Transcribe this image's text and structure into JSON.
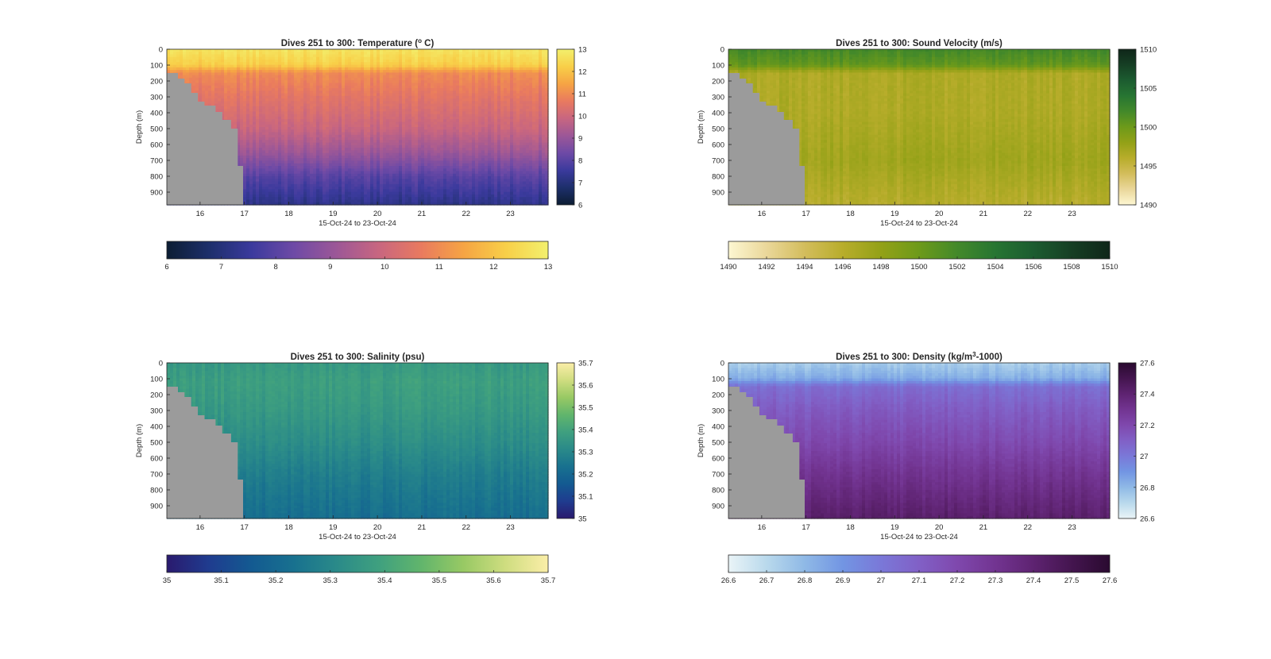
{
  "chart_data": [
    {
      "type": "heatmap",
      "title": "Dives 251 to 300: Temperature (° C)",
      "title_parts": [
        "Dives 251 to 300: Temperature (",
        "o",
        " C)"
      ],
      "xlabel": "15-Oct-24 to 23-Oct-24",
      "ylabel": "Depth (m)",
      "x_ticks": [
        "16",
        "17",
        "18",
        "19",
        "20",
        "21",
        "22",
        "23"
      ],
      "x_tick_values": [
        16,
        17,
        18,
        19,
        20,
        21,
        22,
        23
      ],
      "xlim": [
        15.25,
        23.85
      ],
      "y_ticks": [
        "0",
        "100",
        "200",
        "300",
        "400",
        "500",
        "600",
        "700",
        "800",
        "900"
      ],
      "ylim": [
        0,
        980
      ],
      "y_reversed": true,
      "clim": [
        6,
        13
      ],
      "colorbar_ticks": [
        "6",
        "7",
        "8",
        "9",
        "10",
        "11",
        "12",
        "13"
      ],
      "colorbar_tick_values": [
        6,
        7,
        8,
        9,
        10,
        11,
        12,
        13
      ],
      "horizontal_colorbar_ticks": [
        "6",
        "7",
        "8",
        "9",
        "10",
        "11",
        "12",
        "13"
      ],
      "horizontal_colorbar_tick_values": [
        6,
        7,
        8,
        9,
        10,
        11,
        12,
        13
      ],
      "colormap": [
        "#0c1d33",
        "#1d2f6b",
        "#3b3a9d",
        "#6e4aa6",
        "#9c5797",
        "#c86680",
        "#e97a5f",
        "#f6a444",
        "#f8cf48",
        "#f3f06d"
      ],
      "profile": [
        {
          "depth": 0,
          "value": 12.7
        },
        {
          "depth": 100,
          "value": 12.2
        },
        {
          "depth": 150,
          "value": 11.0
        },
        {
          "depth": 300,
          "value": 10.5
        },
        {
          "depth": 500,
          "value": 9.9
        },
        {
          "depth": 650,
          "value": 9.1
        },
        {
          "depth": 800,
          "value": 8.0
        },
        {
          "depth": 980,
          "value": 7.2
        }
      ],
      "bathymetry": [
        {
          "x": 15.25,
          "depth": 150
        },
        {
          "x": 15.5,
          "depth": 185
        },
        {
          "x": 15.65,
          "depth": 215
        },
        {
          "x": 15.8,
          "depth": 275
        },
        {
          "x": 15.95,
          "depth": 330
        },
        {
          "x": 16.1,
          "depth": 355
        },
        {
          "x": 16.35,
          "depth": 395
        },
        {
          "x": 16.5,
          "depth": 445
        },
        {
          "x": 16.7,
          "depth": 500
        },
        {
          "x": 16.85,
          "depth": 735
        },
        {
          "x": 16.97,
          "depth": 980
        }
      ]
    },
    {
      "type": "heatmap",
      "title": "Dives 251 to 300: Sound Velocity (m/s)",
      "title_parts": [
        "Dives 251 to 300: Sound Velocity (m/s)",
        "",
        ""
      ],
      "xlabel": "15-Oct-24 to 23-Oct-24",
      "ylabel": "Depth (m)",
      "x_ticks": [
        "16",
        "17",
        "18",
        "19",
        "20",
        "21",
        "22",
        "23"
      ],
      "x_tick_values": [
        16,
        17,
        18,
        19,
        20,
        21,
        22,
        23
      ],
      "xlim": [
        15.25,
        23.85
      ],
      "y_ticks": [
        "0",
        "100",
        "200",
        "300",
        "400",
        "500",
        "600",
        "700",
        "800",
        "900"
      ],
      "ylim": [
        0,
        980
      ],
      "y_reversed": true,
      "clim": [
        1490,
        1510
      ],
      "colorbar_ticks": [
        "1490",
        "1495",
        "1500",
        "1505",
        "1510"
      ],
      "colorbar_tick_values": [
        1490,
        1495,
        1500,
        1505,
        1510
      ],
      "horizontal_colorbar_ticks": [
        "1490",
        "1492",
        "1494",
        "1496",
        "1498",
        "1500",
        "1502",
        "1504",
        "1506",
        "1508",
        "1510"
      ],
      "horizontal_colorbar_tick_values": [
        1490,
        1492,
        1494,
        1496,
        1498,
        1500,
        1502,
        1504,
        1506,
        1508,
        1510
      ],
      "colormap": [
        "#fdf7d2",
        "#ead79a",
        "#d3bd5c",
        "#b8ad2b",
        "#93a117",
        "#6d9a1a",
        "#43892a",
        "#277532",
        "#1c5c30",
        "#163f24",
        "#0f2619"
      ],
      "profile": [
        {
          "depth": 0,
          "value": 1502.0
        },
        {
          "depth": 100,
          "value": 1500.5
        },
        {
          "depth": 150,
          "value": 1496.5
        },
        {
          "depth": 400,
          "value": 1496.5
        },
        {
          "depth": 700,
          "value": 1497.3
        },
        {
          "depth": 980,
          "value": 1496.0
        }
      ],
      "bathymetry": [
        {
          "x": 15.25,
          "depth": 150
        },
        {
          "x": 15.5,
          "depth": 185
        },
        {
          "x": 15.65,
          "depth": 215
        },
        {
          "x": 15.8,
          "depth": 275
        },
        {
          "x": 15.95,
          "depth": 330
        },
        {
          "x": 16.1,
          "depth": 355
        },
        {
          "x": 16.35,
          "depth": 395
        },
        {
          "x": 16.5,
          "depth": 445
        },
        {
          "x": 16.7,
          "depth": 500
        },
        {
          "x": 16.85,
          "depth": 735
        },
        {
          "x": 16.97,
          "depth": 980
        }
      ]
    },
    {
      "type": "heatmap",
      "title": "Dives 251 to 300: Salinity (psu)",
      "title_parts": [
        "Dives 251 to 300: Salinity (psu)",
        "",
        ""
      ],
      "xlabel": "15-Oct-24 to 23-Oct-24",
      "ylabel": "Depth (m)",
      "x_ticks": [
        "16",
        "17",
        "18",
        "19",
        "20",
        "21",
        "22",
        "23"
      ],
      "x_tick_values": [
        16,
        17,
        18,
        19,
        20,
        21,
        22,
        23
      ],
      "xlim": [
        15.25,
        23.85
      ],
      "y_ticks": [
        "0",
        "100",
        "200",
        "300",
        "400",
        "500",
        "600",
        "700",
        "800",
        "900"
      ],
      "ylim": [
        0,
        980
      ],
      "y_reversed": true,
      "clim": [
        35,
        35.7
      ],
      "colorbar_ticks": [
        "35",
        "35.1",
        "35.2",
        "35.3",
        "35.4",
        "35.5",
        "35.6",
        "35.7"
      ],
      "colorbar_tick_values": [
        35,
        35.1,
        35.2,
        35.3,
        35.4,
        35.5,
        35.6,
        35.7
      ],
      "horizontal_colorbar_ticks": [
        "35",
        "35.1",
        "35.2",
        "35.3",
        "35.4",
        "35.5",
        "35.6",
        "35.7"
      ],
      "horizontal_colorbar_tick_values": [
        35,
        35.1,
        35.2,
        35.3,
        35.4,
        35.5,
        35.6,
        35.7
      ],
      "colormap": [
        "#2a1a6e",
        "#1f3c8f",
        "#135a91",
        "#18718f",
        "#2a8a89",
        "#3fa07f",
        "#61b56c",
        "#98c964",
        "#cfdd80",
        "#fbeea8"
      ],
      "profile": [
        {
          "depth": 0,
          "value": 35.36
        },
        {
          "depth": 120,
          "value": 35.38
        },
        {
          "depth": 300,
          "value": 35.36
        },
        {
          "depth": 500,
          "value": 35.32
        },
        {
          "depth": 700,
          "value": 35.27
        },
        {
          "depth": 980,
          "value": 35.22
        }
      ],
      "bathymetry": [
        {
          "x": 15.25,
          "depth": 150
        },
        {
          "x": 15.5,
          "depth": 185
        },
        {
          "x": 15.65,
          "depth": 215
        },
        {
          "x": 15.8,
          "depth": 275
        },
        {
          "x": 15.95,
          "depth": 330
        },
        {
          "x": 16.1,
          "depth": 355
        },
        {
          "x": 16.35,
          "depth": 395
        },
        {
          "x": 16.5,
          "depth": 445
        },
        {
          "x": 16.7,
          "depth": 500
        },
        {
          "x": 16.85,
          "depth": 735
        },
        {
          "x": 16.97,
          "depth": 980
        }
      ]
    },
    {
      "type": "heatmap",
      "title": "Dives 251 to 300: Density (kg/m³-1000)",
      "title_parts": [
        "Dives 251 to 300: Density (kg/m",
        "3",
        "-1000)"
      ],
      "xlabel": "15-Oct-24 to 23-Oct-24",
      "ylabel": "Depth (m)",
      "x_ticks": [
        "16",
        "17",
        "18",
        "19",
        "20",
        "21",
        "22",
        "23"
      ],
      "x_tick_values": [
        16,
        17,
        18,
        19,
        20,
        21,
        22,
        23
      ],
      "xlim": [
        15.25,
        23.85
      ],
      "y_ticks": [
        "0",
        "100",
        "200",
        "300",
        "400",
        "500",
        "600",
        "700",
        "800",
        "900"
      ],
      "ylim": [
        0,
        980
      ],
      "y_reversed": true,
      "clim": [
        26.6,
        27.6
      ],
      "colorbar_ticks": [
        "26.6",
        "26.8",
        "27",
        "27.2",
        "27.4",
        "27.6"
      ],
      "colorbar_tick_values": [
        26.6,
        26.8,
        27,
        27.2,
        27.4,
        27.6
      ],
      "horizontal_colorbar_ticks": [
        "26.6",
        "26.7",
        "26.8",
        "26.9",
        "27",
        "27.1",
        "27.2",
        "27.3",
        "27.4",
        "27.5",
        "27.6"
      ],
      "horizontal_colorbar_tick_values": [
        26.6,
        26.7,
        26.8,
        26.9,
        27,
        27.1,
        27.2,
        27.3,
        27.4,
        27.5,
        27.6
      ],
      "colormap": [
        "#eaf4f7",
        "#b9d9ec",
        "#8fb9e6",
        "#7295e3",
        "#7a78d8",
        "#8160c6",
        "#7f48ad",
        "#723491",
        "#5e2371",
        "#44154f",
        "#2a0a30"
      ],
      "profile": [
        {
          "depth": 0,
          "value": 26.74
        },
        {
          "depth": 100,
          "value": 26.84
        },
        {
          "depth": 150,
          "value": 27.04
        },
        {
          "depth": 300,
          "value": 27.12
        },
        {
          "depth": 500,
          "value": 27.2
        },
        {
          "depth": 700,
          "value": 27.3
        },
        {
          "depth": 980,
          "value": 27.42
        }
      ],
      "bathymetry": [
        {
          "x": 15.25,
          "depth": 150
        },
        {
          "x": 15.5,
          "depth": 185
        },
        {
          "x": 15.65,
          "depth": 215
        },
        {
          "x": 15.8,
          "depth": 275
        },
        {
          "x": 15.95,
          "depth": 330
        },
        {
          "x": 16.1,
          "depth": 355
        },
        {
          "x": 16.35,
          "depth": 395
        },
        {
          "x": 16.5,
          "depth": 445
        },
        {
          "x": 16.7,
          "depth": 500
        },
        {
          "x": 16.85,
          "depth": 735
        },
        {
          "x": 16.97,
          "depth": 980
        }
      ]
    }
  ]
}
